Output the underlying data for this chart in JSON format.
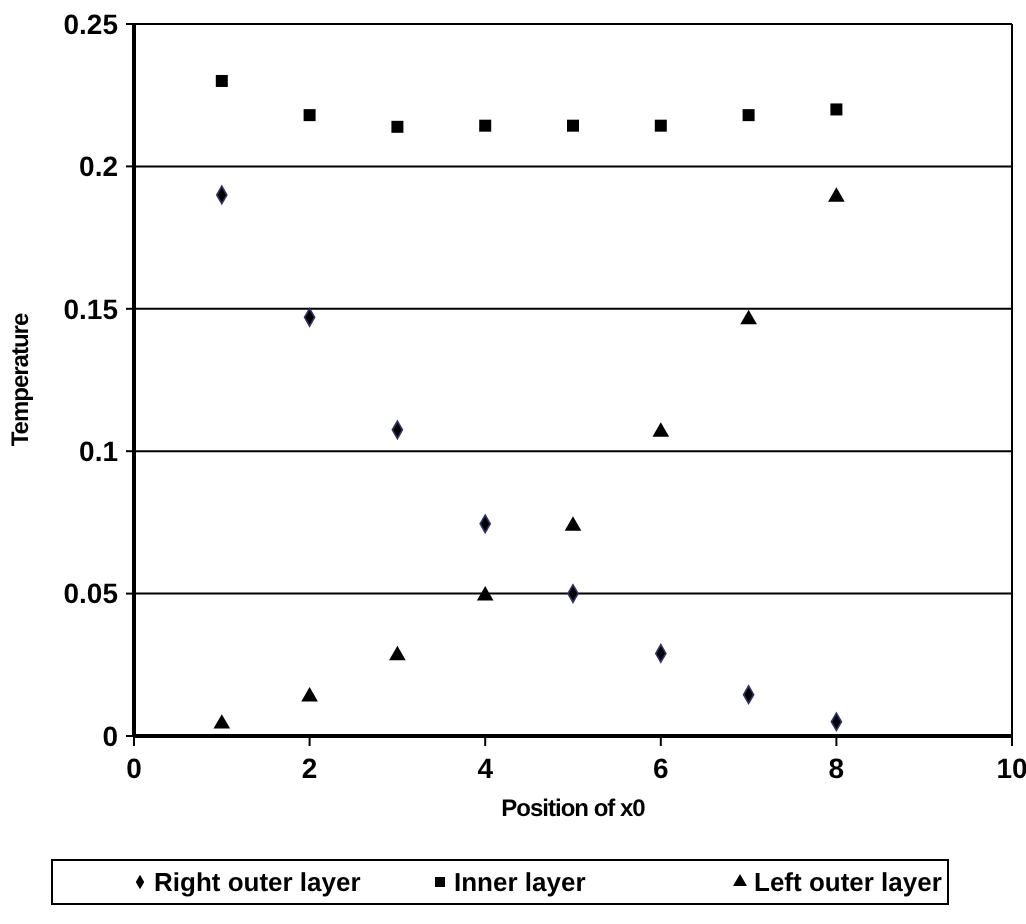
{
  "chart_data": {
    "type": "scatter",
    "xlabel": "Position of x0",
    "ylabel": "Temperature",
    "x": [
      1,
      2,
      3,
      4,
      5,
      6,
      7,
      8
    ],
    "xlim": [
      0,
      10
    ],
    "xticks": [
      0,
      2,
      4,
      6,
      8,
      10
    ],
    "ylim": [
      0,
      0.25
    ],
    "yticks": [
      0,
      0.05,
      0.1,
      0.15,
      0.2,
      0.25
    ],
    "grid": "y",
    "legend": "bottom",
    "series": [
      {
        "name": "Right outer layer",
        "color": "#000000",
        "marker": "diamond",
        "values": [
          0.19,
          0.147,
          0.1075,
          0.0745,
          0.05,
          0.029,
          0.0145,
          0.005
        ]
      },
      {
        "name": "Inner layer",
        "color": "#000000",
        "marker": "square",
        "values": [
          0.23,
          0.218,
          0.2139,
          0.2143,
          0.2143,
          0.2143,
          0.218,
          0.22
        ]
      },
      {
        "name": "Left outer layer",
        "color": "#000000",
        "marker": "triangle",
        "values": [
          0.005,
          0.0145,
          0.029,
          0.05,
          0.0745,
          0.1075,
          0.147,
          0.19
        ]
      }
    ]
  }
}
